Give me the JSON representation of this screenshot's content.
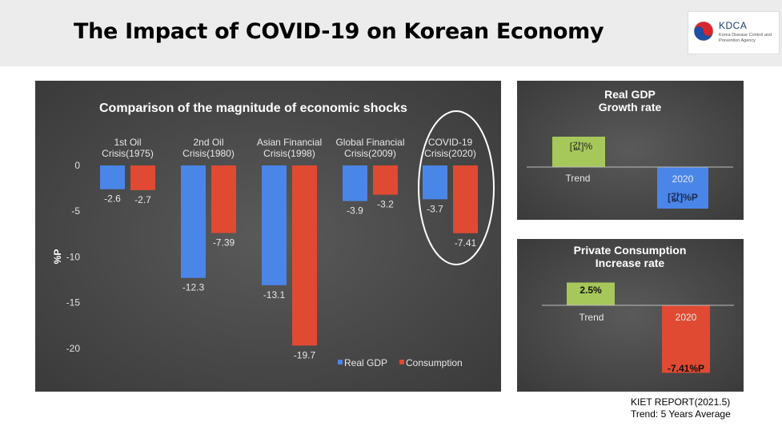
{
  "page_title": "The Impact of COVID-19 on Korean Economy",
  "logo": {
    "name": "KDCA",
    "subtitle": "Korea Disease Control and Prevention Agency",
    "icon": "taegeuk-icon"
  },
  "source": {
    "line1": "KIET REPORT(2021.5)",
    "line2": "Trend: 5 Years Average"
  },
  "colors": {
    "real_gdp": "#4a86e8",
    "consumption": "#e04a32",
    "trend": "#a6c85a"
  },
  "chart_data": [
    {
      "type": "bar",
      "title": "Comparison of the magnitude of economic shocks",
      "ylabel": "%P",
      "ylim": [
        -20,
        0
      ],
      "yticks": [
        0,
        -5,
        -10,
        -15,
        -20
      ],
      "categories": [
        "1st Oil Crisis(1975)",
        "2nd Oil Crisis(1980)",
        "Asian Financial Crisis(1998)",
        "Global Financial Crisis(2009)",
        "COVID-19 Crisis(2020)"
      ],
      "category_lines": [
        [
          "1st Oil",
          "Crisis(1975)"
        ],
        [
          "2nd Oil",
          "Crisis(1980)"
        ],
        [
          "Asian Financial",
          "Crisis(1998)"
        ],
        [
          "Global Financial",
          "Crisis(2009)"
        ],
        [
          "COVID-19",
          "Crisis(2020)"
        ]
      ],
      "series": [
        {
          "name": "Real GDP",
          "values": [
            -2.6,
            -12.3,
            -13.1,
            -3.9,
            -3.7
          ]
        },
        {
          "name": "Consumption",
          "values": [
            -2.7,
            -7.39,
            -19.7,
            -3.2,
            -7.41
          ]
        }
      ],
      "grid": false,
      "legend": "bottom-right",
      "highlight": "COVID-19 Crisis(2020)"
    },
    {
      "type": "bar",
      "title_lines": [
        "Real GDP",
        "Growth rate"
      ],
      "categories": [
        "Trend",
        "2020"
      ],
      "data_labels": [
        "[값]%",
        "[값]%P"
      ]
    },
    {
      "type": "bar",
      "title_lines": [
        "Private Consumption",
        "Increase rate"
      ],
      "categories": [
        "Trend",
        "2020"
      ],
      "values": [
        2.5,
        -7.41
      ],
      "data_labels": [
        "2.5%",
        "-7.41%P"
      ]
    }
  ]
}
